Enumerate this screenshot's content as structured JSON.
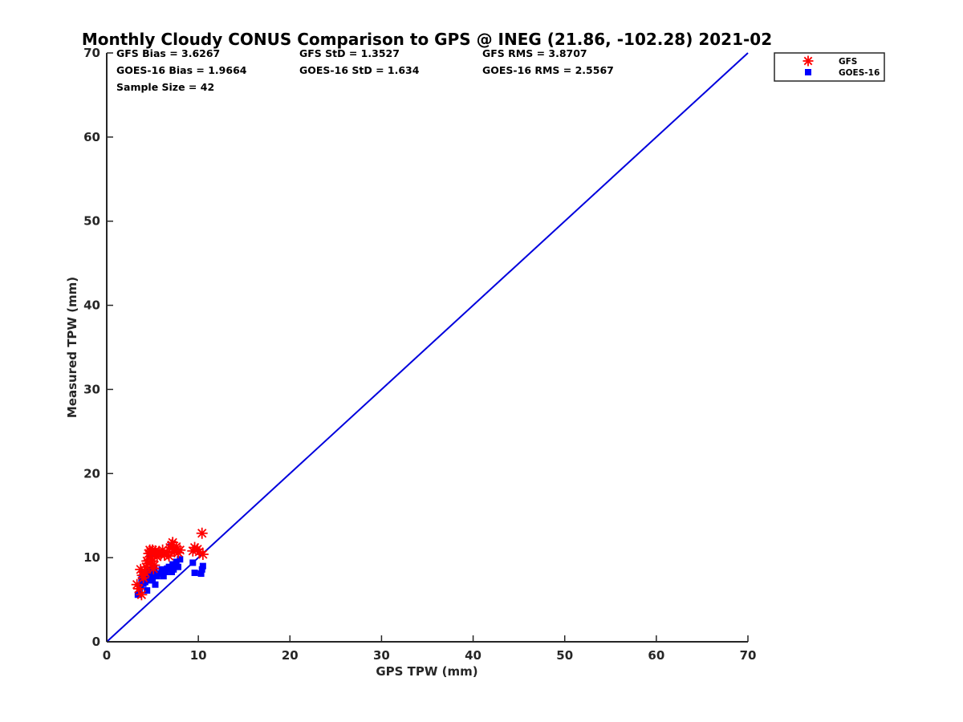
{
  "chart_data": {
    "type": "scatter",
    "title": "Monthly Cloudy CONUS Comparison to GPS @ INEG (21.86, -102.28) 2021-02",
    "xlabel": "GPS TPW (mm)",
    "ylabel": "Measured TPW (mm)",
    "xlim": [
      0,
      70
    ],
    "ylim": [
      0,
      70
    ],
    "xticks": [
      "0",
      "10",
      "20",
      "30",
      "40",
      "50",
      "60",
      "70"
    ],
    "yticks": [
      "0",
      "10",
      "20",
      "30",
      "40",
      "50",
      "60",
      "70"
    ],
    "grid": false,
    "legend_position": "top-right, outside",
    "reference_line": {
      "type": "1:1",
      "x": [
        0,
        70
      ],
      "y": [
        0,
        70
      ],
      "color": "#0000dd"
    },
    "stats": [
      [
        "GFS Bias = 3.6267",
        "GFS StD = 1.3527",
        "GFS RMS = 3.8707"
      ],
      [
        "GOES-16 Bias = 1.9664",
        "GOES-16 StD = 1.634",
        "GOES-16 RMS = 2.5567"
      ],
      [
        "Sample Size = 42",
        "",
        ""
      ]
    ],
    "series": [
      {
        "name": "GFS",
        "marker": "asterisk",
        "color": "#ff0000",
        "x": [
          3.3,
          3.5,
          3.7,
          3.8,
          4.0,
          4.1,
          4.3,
          4.5,
          4.6,
          4.7,
          4.8,
          4.9,
          5.0,
          5.1,
          5.2,
          5.3,
          5.5,
          5.7,
          5.9,
          6.1,
          6.3,
          6.6,
          6.9,
          7.1,
          7.2,
          7.4,
          7.6,
          7.8,
          8.0,
          9.4,
          9.6,
          9.9,
          10.1,
          10.4,
          10.5,
          4.4,
          4.9,
          5.4,
          6.8,
          7.3,
          3.9,
          4.2
        ],
        "y": [
          6.8,
          6.3,
          8.6,
          5.6,
          7.6,
          8.4,
          8.9,
          9.3,
          10.5,
          10.9,
          10.7,
          9.6,
          10.9,
          8.7,
          9.1,
          10.8,
          10.1,
          10.6,
          10.4,
          10.9,
          10.3,
          10.6,
          11.2,
          11.5,
          11.8,
          10.7,
          11.3,
          10.6,
          10.9,
          10.8,
          11.2,
          11.0,
          10.7,
          12.9,
          10.4,
          9.6,
          9.9,
          10.5,
          10.2,
          11.0,
          7.9,
          8.2
        ]
      },
      {
        "name": "GOES-16",
        "marker": "square",
        "color": "#0000ff",
        "x": [
          3.4,
          3.6,
          3.8,
          3.9,
          4.0,
          4.1,
          4.2,
          4.4,
          4.5,
          4.6,
          4.7,
          4.8,
          4.9,
          5.0,
          5.1,
          5.3,
          5.5,
          5.8,
          6.0,
          6.2,
          6.4,
          6.6,
          6.8,
          7.0,
          7.1,
          7.3,
          7.5,
          7.6,
          7.8,
          8.0,
          9.4,
          9.6,
          10.3,
          10.5,
          3.7,
          4.3,
          5.2,
          6.1,
          7.2,
          4.0,
          4.6,
          10.4
        ],
        "y": [
          5.6,
          6.3,
          7.4,
          8.1,
          6.9,
          7.8,
          7.1,
          6.1,
          8.3,
          7.3,
          10.3,
          8.2,
          7.6,
          7.5,
          8.4,
          6.8,
          7.8,
          8.1,
          8.6,
          7.8,
          8.3,
          8.7,
          8.9,
          11.3,
          8.3,
          8.6,
          9.1,
          9.5,
          8.9,
          9.8,
          9.4,
          8.2,
          8.1,
          9.0,
          6.7,
          8.0,
          8.8,
          8.3,
          9.2,
          7.2,
          8.5,
          8.6
        ]
      }
    ]
  }
}
